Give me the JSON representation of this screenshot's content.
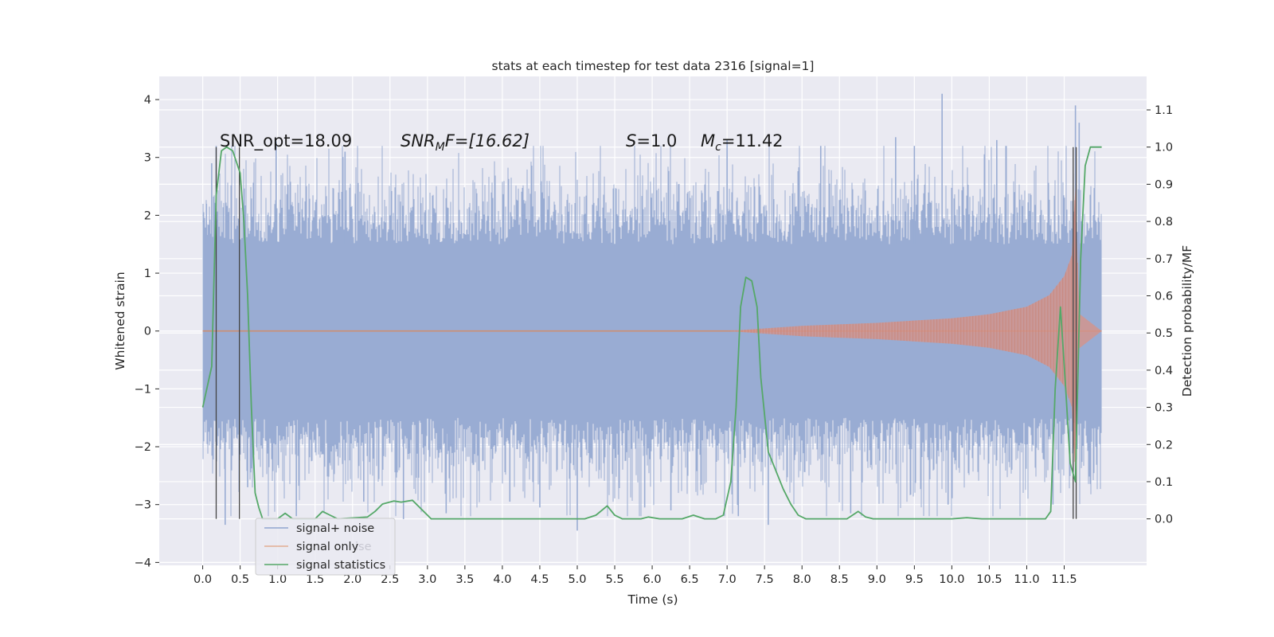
{
  "chart_data": {
    "type": "line",
    "title": "stats at each timestep for test data 2316 [signal=1]",
    "xlabel": "Time (s)",
    "ylabel": "Whitened strain",
    "y2label": "Detection probability/MF",
    "xlim": [
      -0.58,
      12.6
    ],
    "ylim": [
      -4.05,
      4.4
    ],
    "y2lim": [
      -0.125,
      1.19
    ],
    "x_ticks": [
      "0.0",
      "0.5",
      "1.0",
      "1.5",
      "2.0",
      "2.5",
      "3.0",
      "3.5",
      "4.0",
      "4.5",
      "5.0",
      "5.5",
      "6.0",
      "6.5",
      "7.0",
      "7.5",
      "8.0",
      "8.5",
      "9.0",
      "9.5",
      "10.0",
      "10.5",
      "11.0",
      "11.5"
    ],
    "y_ticks": [
      "4",
      "3",
      "2",
      "1",
      "0",
      "−1",
      "−2",
      "−3",
      "−4"
    ],
    "y2_ticks": [
      "1.1",
      "1.0",
      "0.9",
      "0.8",
      "0.7",
      "0.6",
      "0.5",
      "0.4",
      "0.3",
      "0.2",
      "0.1",
      "0.0"
    ],
    "grid": true,
    "legend_placement": "lower-left",
    "legend": [
      {
        "label": "signal+ noise",
        "color": "#8fa5cf"
      },
      {
        "label": "signal only",
        "color": "#dd8452"
      },
      {
        "label": "signal statistics",
        "color": "#55a868"
      }
    ],
    "ghost_legend_text": "ise",
    "annotations": {
      "snr_opt": "SNR_opt=18.09",
      "snr_mf_main": "SNR",
      "snr_mf_sub": "M",
      "snr_mf_tail": "F=[16.62]",
      "s_var": "S",
      "s_val": "=1.0",
      "mc_var": "M",
      "mc_sub": "c",
      "mc_val": "=11.42"
    },
    "series": [
      {
        "name": "signal+ noise",
        "kind": "noise",
        "x_range": [
          0.0,
          12.0
        ],
        "envelope_y": [
          -1.5,
          1.5
        ],
        "spike_extremes": [
          [
            0.02,
            1.8
          ],
          [
            0.05,
            2.2
          ],
          [
            0.12,
            2.9
          ],
          [
            0.18,
            3.2
          ],
          [
            0.3,
            -3.35
          ],
          [
            0.6,
            -2.7
          ],
          [
            0.98,
            3.28
          ],
          [
            1.25,
            -3.2
          ],
          [
            1.9,
            3.1
          ],
          [
            2.15,
            -2.95
          ],
          [
            2.68,
            -3.25
          ],
          [
            3.25,
            -3.15
          ],
          [
            4.1,
            -2.95
          ],
          [
            4.5,
            -3.05
          ],
          [
            5.0,
            -3.45
          ],
          [
            5.9,
            -3.05
          ],
          [
            6.25,
            -3.1
          ],
          [
            7.0,
            3.3
          ],
          [
            7.15,
            -3.2
          ],
          [
            7.55,
            -3.35
          ],
          [
            8.25,
            3.2
          ],
          [
            8.65,
            -3.15
          ],
          [
            9.25,
            3.35
          ],
          [
            9.5,
            3.2
          ],
          [
            9.87,
            4.1
          ],
          [
            9.95,
            -3.0
          ],
          [
            10.6,
            3.3
          ],
          [
            11.35,
            -3.0
          ],
          [
            11.65,
            3.9
          ],
          [
            11.7,
            3.6
          ]
        ]
      },
      {
        "name": "signal only",
        "kind": "chirp",
        "x_range": [
          0.0,
          12.0
        ],
        "start_x": 7.0,
        "amplitude_points": [
          [
            7.0,
            0.0
          ],
          [
            8.0,
            0.09
          ],
          [
            9.0,
            0.14
          ],
          [
            10.0,
            0.22
          ],
          [
            10.5,
            0.29
          ],
          [
            11.0,
            0.42
          ],
          [
            11.3,
            0.62
          ],
          [
            11.5,
            0.95
          ],
          [
            11.6,
            1.3
          ],
          [
            11.65,
            2.5
          ],
          [
            11.7,
            0.3
          ],
          [
            12.0,
            0.0
          ]
        ]
      },
      {
        "name": "signal statistics",
        "kind": "probability",
        "axis": "right",
        "points": [
          [
            0.0,
            0.3
          ],
          [
            0.12,
            0.41
          ],
          [
            0.18,
            0.87
          ],
          [
            0.25,
            0.99
          ],
          [
            0.32,
            1.0
          ],
          [
            0.4,
            0.99
          ],
          [
            0.5,
            0.93
          ],
          [
            0.55,
            0.8
          ],
          [
            0.6,
            0.6
          ],
          [
            0.65,
            0.3
          ],
          [
            0.7,
            0.07
          ],
          [
            0.75,
            0.03
          ],
          [
            0.8,
            0.0
          ],
          [
            1.0,
            0.0
          ],
          [
            1.1,
            0.015
          ],
          [
            1.2,
            0.0
          ],
          [
            1.5,
            0.0
          ],
          [
            1.6,
            0.02
          ],
          [
            1.7,
            0.01
          ],
          [
            1.8,
            0.0
          ],
          [
            2.2,
            0.005
          ],
          [
            2.3,
            0.02
          ],
          [
            2.4,
            0.04
          ],
          [
            2.55,
            0.048
          ],
          [
            2.65,
            0.045
          ],
          [
            2.8,
            0.05
          ],
          [
            2.95,
            0.02
          ],
          [
            3.05,
            0.0
          ],
          [
            5.1,
            0.0
          ],
          [
            5.25,
            0.01
          ],
          [
            5.4,
            0.035
          ],
          [
            5.5,
            0.01
          ],
          [
            5.6,
            0.0
          ],
          [
            5.85,
            0.0
          ],
          [
            5.95,
            0.005
          ],
          [
            6.1,
            0.0
          ],
          [
            6.4,
            0.0
          ],
          [
            6.55,
            0.01
          ],
          [
            6.7,
            0.0
          ],
          [
            6.85,
            0.0
          ],
          [
            6.95,
            0.01
          ],
          [
            7.05,
            0.1
          ],
          [
            7.12,
            0.3
          ],
          [
            7.18,
            0.57
          ],
          [
            7.25,
            0.65
          ],
          [
            7.33,
            0.64
          ],
          [
            7.4,
            0.57
          ],
          [
            7.45,
            0.38
          ],
          [
            7.55,
            0.18
          ],
          [
            7.65,
            0.13
          ],
          [
            7.75,
            0.08
          ],
          [
            7.85,
            0.04
          ],
          [
            7.95,
            0.01
          ],
          [
            8.05,
            0.0
          ],
          [
            8.6,
            0.0
          ],
          [
            8.75,
            0.02
          ],
          [
            8.85,
            0.005
          ],
          [
            8.95,
            0.0
          ],
          [
            10.0,
            0.0
          ],
          [
            10.2,
            0.003
          ],
          [
            10.4,
            0.0
          ],
          [
            11.25,
            0.0
          ],
          [
            11.32,
            0.02
          ],
          [
            11.38,
            0.35
          ],
          [
            11.45,
            0.57
          ],
          [
            11.52,
            0.35
          ],
          [
            11.58,
            0.15
          ],
          [
            11.65,
            0.1
          ],
          [
            11.72,
            0.7
          ],
          [
            11.78,
            0.95
          ],
          [
            11.85,
            1.0
          ],
          [
            11.95,
            1.0
          ],
          [
            12.0,
            1.0
          ]
        ]
      }
    ],
    "vertical_markers": [
      0.18,
      0.49,
      11.62,
      11.66
    ]
  }
}
